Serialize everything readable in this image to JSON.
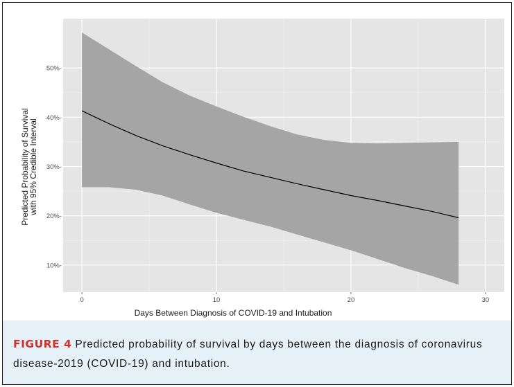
{
  "figure": {
    "caption_label": "FIGURE 4",
    "caption_text": " Predicted probability of survival by days between the diagnosis of coronavirus disease-2019 (COVID-19) and intubation."
  },
  "chart_data": {
    "type": "line",
    "title": "",
    "xlabel": "Days Between Diagnosis of COVID-19 and Intubation",
    "ylabel": [
      "Predicted Probability of Survival",
      "with 95% Credible Interval"
    ],
    "xlim": [
      -1.4,
      31.4
    ],
    "ylim": [
      4.5,
      60.0
    ],
    "x_ticks": [
      0,
      10,
      20,
      30
    ],
    "x_tick_labels": [
      "0",
      "10",
      "20",
      "30"
    ],
    "y_ticks": [
      10,
      20,
      30,
      40,
      50
    ],
    "y_tick_labels": [
      "10%-",
      "20%-",
      "30%-",
      "40%-",
      "50%-"
    ],
    "grid": true,
    "background": "#e5e5e5",
    "band_color": "#a5a5a5",
    "line_color": "#000000",
    "series": [
      {
        "x": [
          0,
          2,
          4,
          6,
          8,
          10,
          12,
          14,
          16,
          18,
          20,
          22,
          24,
          26,
          28
        ],
        "y": [
          41.3,
          38.7,
          36.3,
          34.2,
          32.4,
          30.7,
          29.1,
          27.8,
          26.5,
          25.3,
          24.1,
          23.1,
          22.0,
          20.9,
          19.6
        ],
        "lower": [
          25.8,
          25.8,
          25.3,
          24.1,
          22.3,
          20.6,
          19.2,
          17.8,
          16.2,
          14.6,
          13.0,
          11.2,
          9.4,
          7.8,
          6.0
        ],
        "upper": [
          57.2,
          53.8,
          50.4,
          47.1,
          44.4,
          42.2,
          40.1,
          38.2,
          36.5,
          35.4,
          34.8,
          34.7,
          34.8,
          34.9,
          35.0
        ]
      }
    ]
  }
}
